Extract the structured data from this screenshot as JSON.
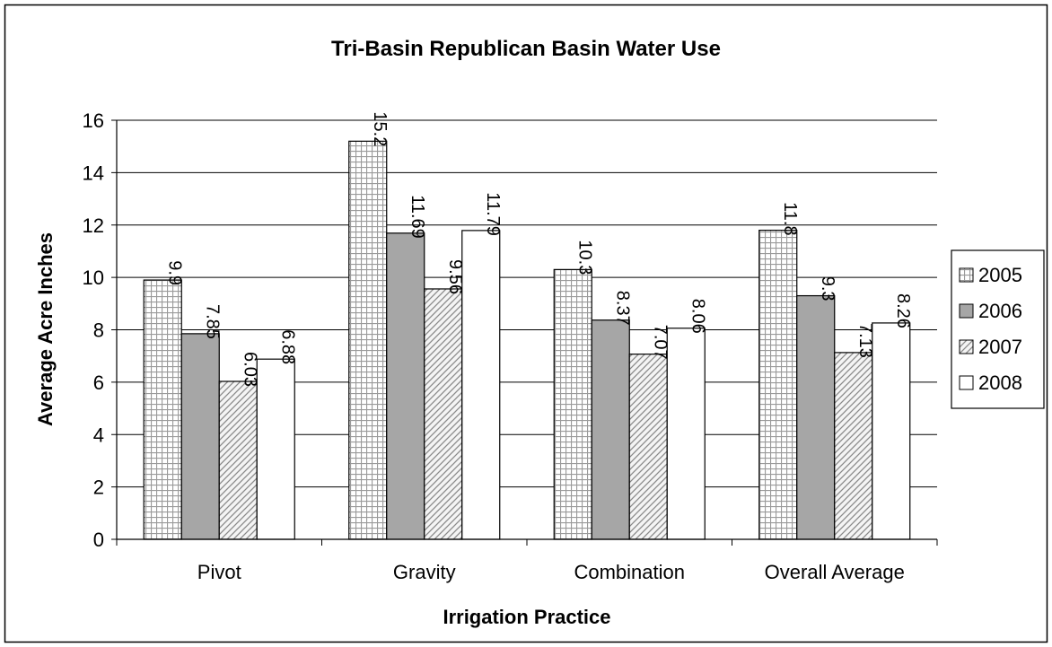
{
  "chart_data": {
    "type": "bar",
    "title": "Tri-Basin Republican Basin Water Use",
    "xlabel": "Irrigation Practice",
    "ylabel": "Average Acre Inches",
    "ylim": [
      0,
      16
    ],
    "yticks": [
      0,
      2,
      4,
      6,
      8,
      10,
      12,
      14,
      16
    ],
    "grid": true,
    "legend_position": "right",
    "categories": [
      "Pivot",
      "Gravity",
      "Combination",
      "Overall Average"
    ],
    "series": [
      {
        "name": "2005",
        "values": [
          9.9,
          15.2,
          10.3,
          11.8
        ],
        "labels": [
          "9.9",
          "15.2",
          "10.3",
          "11.8"
        ],
        "pattern": "grid"
      },
      {
        "name": "2006",
        "values": [
          7.85,
          11.69,
          8.37,
          9.3
        ],
        "labels": [
          "7.85",
          "11.69",
          "8.37",
          "9.3"
        ],
        "pattern": "solid-gray"
      },
      {
        "name": "2007",
        "values": [
          6.03,
          9.56,
          7.07,
          7.13
        ],
        "labels": [
          "6.03",
          "9.56",
          "7.07",
          "7.13"
        ],
        "pattern": "diagonal"
      },
      {
        "name": "2008",
        "values": [
          6.88,
          11.79,
          8.06,
          8.26
        ],
        "labels": [
          "6.88",
          "11.79",
          "8.06",
          "8.26"
        ],
        "pattern": "white"
      }
    ]
  }
}
